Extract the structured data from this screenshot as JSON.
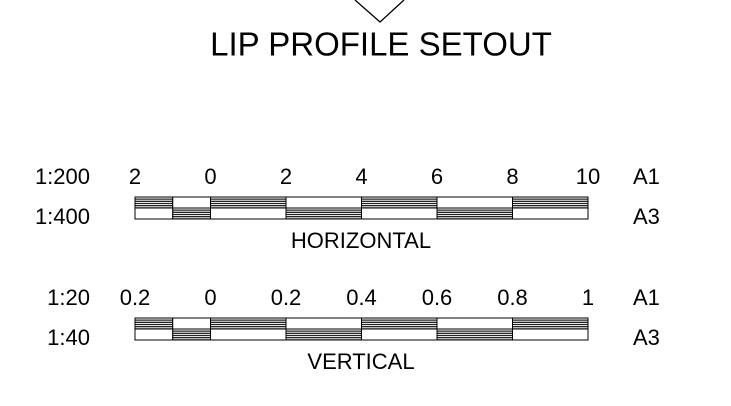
{
  "title": "LIP PROFILE SETOUT",
  "scales": [
    {
      "caption": "HORIZONTAL",
      "ratios": [
        "1:200",
        "1:400"
      ],
      "ticks": [
        "2",
        "0",
        "2",
        "4",
        "6",
        "8",
        "10"
      ],
      "sheets": [
        "A1",
        "A3"
      ]
    },
    {
      "caption": "VERTICAL",
      "ratios": [
        "1:20",
        "1:40"
      ],
      "ticks": [
        "0.2",
        "0",
        "0.2",
        "0.4",
        "0.6",
        "0.8",
        "1"
      ],
      "sheets": [
        "A1",
        "A3"
      ]
    }
  ]
}
